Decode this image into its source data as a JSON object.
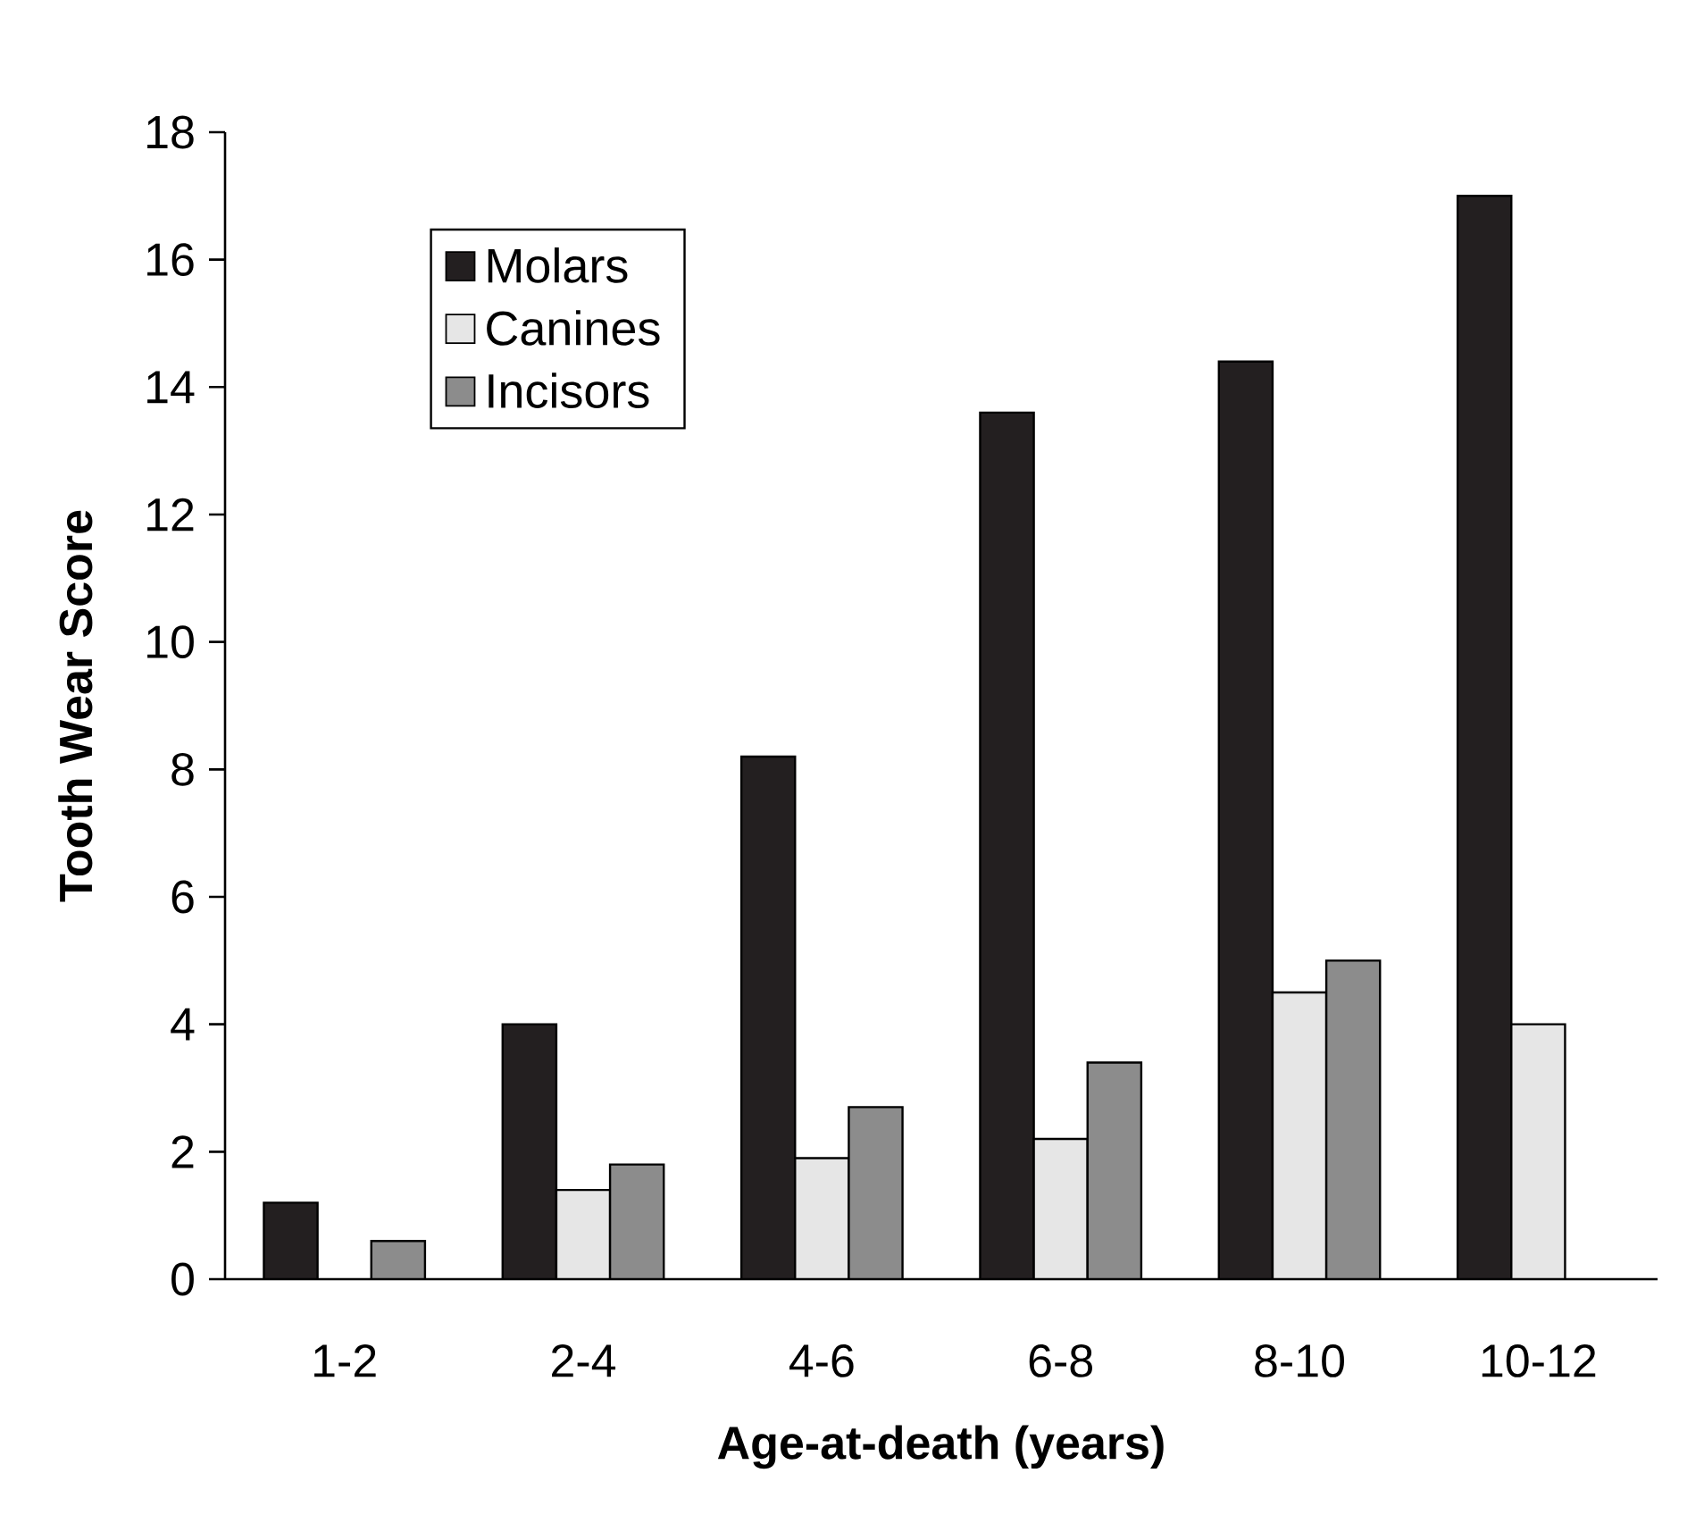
{
  "chart_data": {
    "type": "bar",
    "xlabel": "Age-at-death (years)",
    "ylabel": "Tooth Wear Score",
    "categories": [
      "1-2",
      "2-4",
      "4-6",
      "6-8",
      "8-10",
      "10-12"
    ],
    "series": [
      {
        "name": "Molars",
        "color": "#231f20",
        "values": [
          1.2,
          4.0,
          8.2,
          13.6,
          14.4,
          17.0
        ]
      },
      {
        "name": "Canines",
        "color": "#e6e6e6",
        "values": [
          null,
          1.4,
          1.9,
          2.2,
          4.5,
          4.0
        ]
      },
      {
        "name": "Incisors",
        "color": "#8c8c8c",
        "values": [
          0.6,
          1.8,
          2.7,
          3.4,
          5.0,
          null
        ]
      }
    ],
    "ylim": [
      0,
      18
    ],
    "yticks": [
      0,
      2,
      4,
      6,
      8,
      10,
      12,
      14,
      16,
      18
    ],
    "legend": "top left"
  }
}
